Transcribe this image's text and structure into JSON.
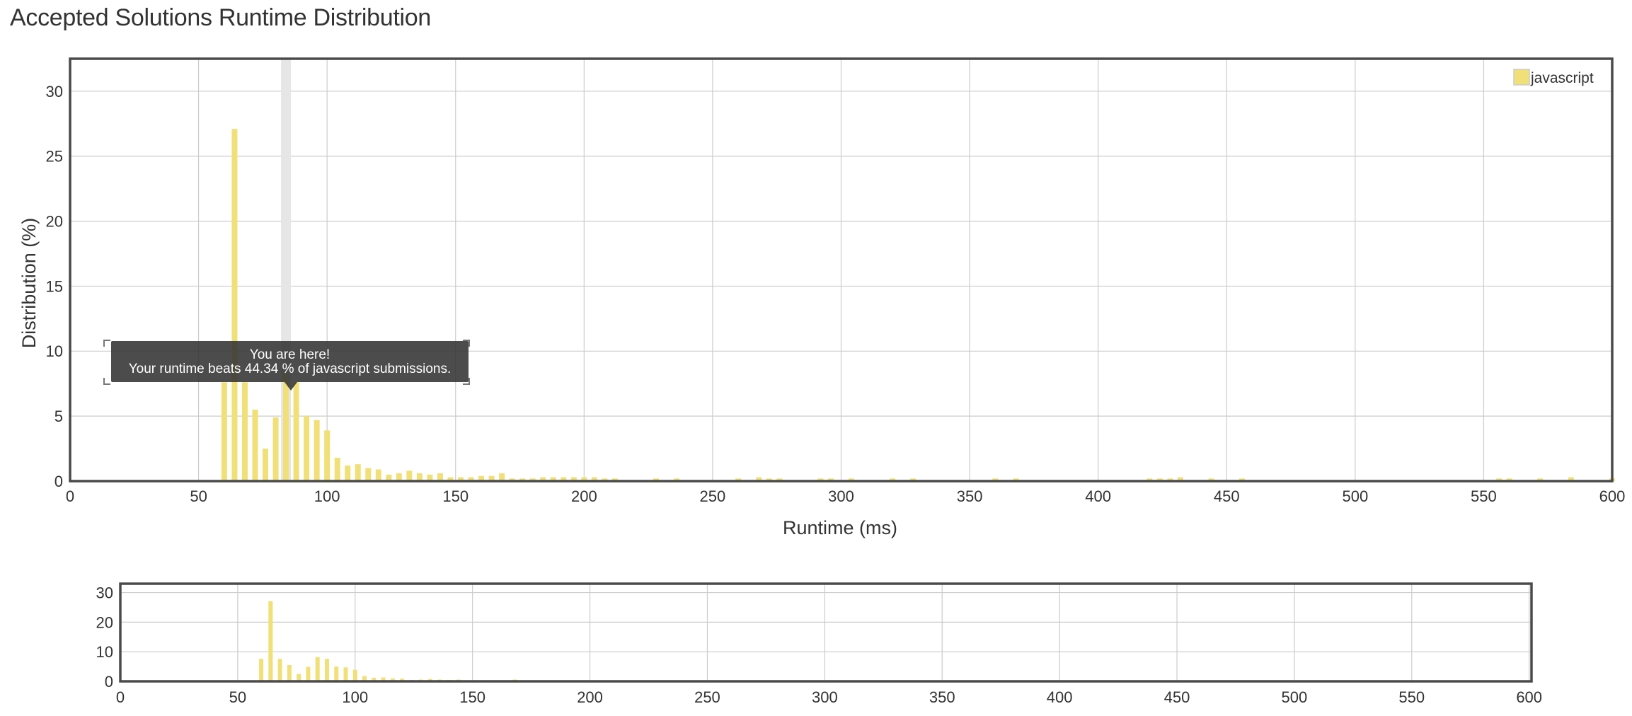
{
  "page": {
    "title": "Accepted Solutions Runtime Distribution"
  },
  "tooltip": {
    "line1": "You are here!",
    "prefix": "Your runtime beats ",
    "percentile": "44.34 %",
    "suffix": " of javascript submissions."
  },
  "chart_data": [
    {
      "type": "bar",
      "title": "",
      "xlabel": "Runtime (ms)",
      "ylabel": "Distribution (%)",
      "xlim": [
        0,
        600
      ],
      "ylim": [
        0,
        32.5
      ],
      "x_ticks": [
        0,
        50,
        100,
        150,
        200,
        250,
        300,
        350,
        400,
        450,
        500,
        550,
        600
      ],
      "y_ticks": [
        0,
        5,
        10,
        15,
        20,
        25,
        30
      ],
      "grid": true,
      "legend": "top-right",
      "highlight_runtime": 84,
      "series": [
        {
          "name": "javascript",
          "color": "#f0e077",
          "x": [
            60,
            64,
            68,
            72,
            76,
            80,
            84,
            88,
            92,
            96,
            100,
            104,
            108,
            112,
            116,
            120,
            124,
            128,
            132,
            136,
            140,
            144,
            148,
            152,
            156,
            160,
            164,
            168,
            172,
            176,
            180,
            184,
            188,
            192,
            196,
            200,
            204,
            208,
            212,
            228,
            236,
            260,
            268,
            272,
            276,
            292,
            296,
            304,
            320,
            328,
            360,
            368,
            420,
            424,
            428,
            432,
            444,
            456,
            556,
            560,
            572,
            584,
            600
          ],
          "values": [
            7.6,
            27.1,
            7.6,
            5.5,
            2.5,
            4.9,
            8.2,
            7.6,
            5.0,
            4.7,
            3.9,
            1.8,
            1.2,
            1.3,
            1.0,
            0.9,
            0.5,
            0.6,
            0.8,
            0.6,
            0.5,
            0.6,
            0.3,
            0.3,
            0.3,
            0.4,
            0.4,
            0.6,
            0.2,
            0.2,
            0.2,
            0.3,
            0.3,
            0.3,
            0.3,
            0.3,
            0.3,
            0.2,
            0.2,
            0.2,
            0.2,
            0.2,
            0.3,
            0.2,
            0.2,
            0.2,
            0.2,
            0.2,
            0.2,
            0.2,
            0.2,
            0.2,
            0.2,
            0.2,
            0.2,
            0.3,
            0.2,
            0.2,
            0.2,
            0.2,
            0.2,
            0.3,
            0.2
          ]
        }
      ]
    },
    {
      "type": "bar",
      "title": "",
      "xlabel": "",
      "ylabel": "",
      "xlim": [
        0,
        601
      ],
      "ylim": [
        0,
        33
      ],
      "x_ticks": [
        0,
        50,
        100,
        150,
        200,
        250,
        300,
        350,
        400,
        450,
        500,
        550,
        600
      ],
      "y_ticks": [
        0,
        10,
        20,
        30
      ],
      "grid": true,
      "series": [
        {
          "color": "#f0e077",
          "x": [
            60,
            64,
            68,
            72,
            76,
            80,
            84,
            88,
            92,
            96,
            100,
            104,
            108,
            112,
            116,
            120,
            124,
            128,
            132,
            136,
            140,
            144,
            148,
            152,
            156,
            160,
            164,
            168,
            172,
            176,
            180,
            184,
            188,
            192,
            196,
            200,
            204,
            208,
            212,
            228,
            236,
            260,
            268,
            272,
            276,
            292,
            296,
            304,
            320,
            328,
            360,
            368,
            420,
            424,
            428,
            432,
            444,
            456,
            556,
            560,
            572,
            584,
            600
          ],
          "values": [
            7.6,
            27.1,
            7.6,
            5.5,
            2.5,
            4.9,
            8.2,
            7.6,
            5.0,
            4.7,
            3.9,
            1.8,
            1.2,
            1.3,
            1.0,
            0.9,
            0.5,
            0.6,
            0.8,
            0.6,
            0.5,
            0.6,
            0.3,
            0.3,
            0.3,
            0.4,
            0.4,
            0.6,
            0.2,
            0.2,
            0.2,
            0.3,
            0.3,
            0.3,
            0.3,
            0.3,
            0.3,
            0.2,
            0.2,
            0.2,
            0.2,
            0.2,
            0.3,
            0.2,
            0.2,
            0.2,
            0.2,
            0.2,
            0.2,
            0.2,
            0.2,
            0.2,
            0.2,
            0.2,
            0.2,
            0.3,
            0.2,
            0.2,
            0.2,
            0.2,
            0.2,
            0.3,
            0.2
          ]
        }
      ]
    }
  ]
}
